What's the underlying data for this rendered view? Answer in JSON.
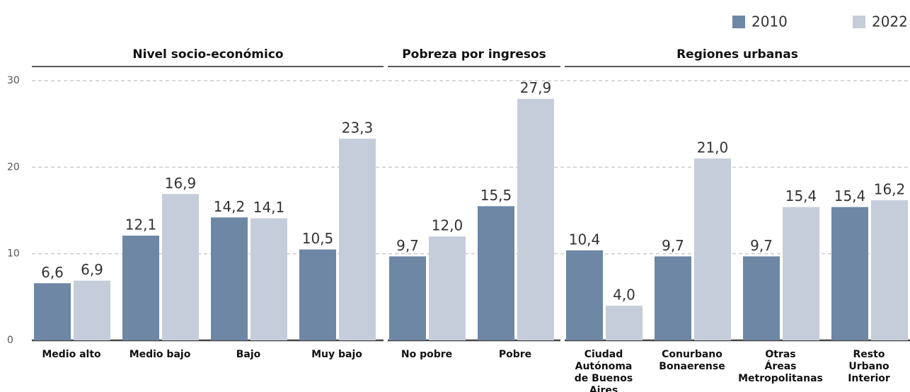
{
  "chart_data": {
    "type": "bar",
    "groups": [
      {
        "title": "Nivel socio-económico",
        "categories": [
          "Medio alto",
          "Medio bajo",
          "Bajo",
          "Muy bajo"
        ]
      },
      {
        "title": "Pobreza por ingresos",
        "categories": [
          "No pobre",
          "Pobre"
        ]
      },
      {
        "title": "Regiones urbanas",
        "categories": [
          "Ciudad\nAutónoma\nde Buenos Aires",
          "Conurbano\nBonaerense",
          "Otras\nÁreas\nMetropolitanas",
          "Resto\nUrbano\nInterior"
        ]
      }
    ],
    "series": [
      {
        "name": "2010",
        "color": "#6d87a5",
        "values": [
          6.6,
          12.1,
          14.2,
          10.5,
          9.7,
          15.5,
          10.4,
          9.7,
          9.7,
          15.4
        ],
        "value_labels": [
          "6,6",
          "12,1",
          "14,2",
          "10,5",
          "9,7",
          "15,5",
          "10,4",
          "9,7",
          "9,7",
          "15,4"
        ]
      },
      {
        "name": "2022",
        "color": "#c5cddb",
        "values": [
          6.9,
          16.9,
          14.1,
          23.3,
          12.0,
          27.9,
          4.0,
          21.0,
          15.4,
          16.2
        ],
        "value_labels": [
          "6,9",
          "16,9",
          "14,1",
          "23,3",
          "12,0",
          "27,9",
          "4,0",
          "21,0",
          "15,4",
          "16,2"
        ]
      }
    ],
    "ylim": [
      0,
      30
    ],
    "yticks": [
      0,
      10,
      20,
      30
    ],
    "grid": true,
    "legend": "top-right"
  }
}
